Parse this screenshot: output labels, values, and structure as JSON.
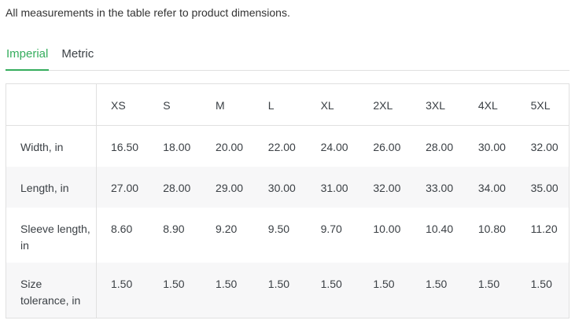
{
  "intro": "All measurements in the table refer to product dimensions.",
  "tabs": {
    "imperial": "Imperial",
    "metric": "Metric",
    "active_tab": "Imperial"
  },
  "colors": {
    "accent_green": "#35ad5d",
    "stripe_background": "#f7f7f8",
    "border": "#e0e0e0",
    "text": "#3b4045"
  },
  "table": {
    "columns": [
      "XS",
      "S",
      "M",
      "L",
      "XL",
      "2XL",
      "3XL",
      "4XL",
      "5XL"
    ],
    "rows": [
      {
        "label": "Width, in",
        "values": [
          "16.50",
          "18.00",
          "20.00",
          "22.00",
          "24.00",
          "26.00",
          "28.00",
          "30.00",
          "32.00"
        ]
      },
      {
        "label": "Length, in",
        "values": [
          "27.00",
          "28.00",
          "29.00",
          "30.00",
          "31.00",
          "32.00",
          "33.00",
          "34.00",
          "35.00"
        ]
      },
      {
        "label": "Sleeve length, in",
        "values": [
          "8.60",
          "8.90",
          "9.20",
          "9.50",
          "9.70",
          "10.00",
          "10.40",
          "10.80",
          "11.20"
        ]
      },
      {
        "label": "Size tolerance, in",
        "values": [
          "1.50",
          "1.50",
          "1.50",
          "1.50",
          "1.50",
          "1.50",
          "1.50",
          "1.50",
          "1.50"
        ]
      }
    ]
  }
}
